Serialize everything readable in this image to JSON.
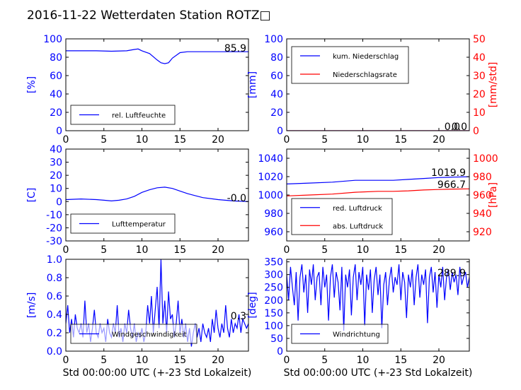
{
  "figure": {
    "title": "2016-11-22 Wetterdaten Station ROTZ□",
    "xlabel": "Std 00:00:00 UTC (+-23 Std Lokalzeit)"
  },
  "colors": {
    "blue": "#0000ff",
    "red": "#ff0000",
    "black": "#000000"
  },
  "chart_data": [
    {
      "id": "humidity",
      "type": "line",
      "xlim": [
        0,
        24
      ],
      "xticks": [
        0,
        5,
        10,
        15,
        20
      ],
      "ylim": [
        0,
        100
      ],
      "yticks": [
        0,
        20,
        40,
        60,
        80,
        100
      ],
      "ylabel": "[%]",
      "series": [
        {
          "name": "rel. Luftfeuchte",
          "color": "#0000ff",
          "x": [
            0,
            2,
            4,
            6,
            8,
            9,
            9.5,
            10,
            11,
            12,
            12.5,
            13,
            13.5,
            14,
            15,
            16,
            18,
            20,
            22,
            24
          ],
          "y": [
            87,
            87,
            87,
            86.5,
            87,
            88.5,
            89,
            87,
            84,
            77,
            74,
            73,
            74,
            79,
            85,
            86,
            86,
            86,
            86,
            86
          ]
        }
      ],
      "annotations": [
        "85.9"
      ],
      "legend_position": "lower-left"
    },
    {
      "id": "precip",
      "type": "line",
      "xlim": [
        0,
        24
      ],
      "xticks": [
        0,
        5,
        10,
        15,
        20
      ],
      "ylim": [
        0,
        100
      ],
      "yticks": [
        0,
        20,
        40,
        60,
        80,
        100
      ],
      "ylabel": "[mm]",
      "y2lim": [
        0,
        50
      ],
      "y2ticks": [
        0,
        10,
        20,
        30,
        40,
        50
      ],
      "y2label": "[mm/std]",
      "series": [
        {
          "name": "kum. Niederschlag",
          "color": "#0000ff",
          "axis": "left",
          "x": [
            0,
            24
          ],
          "y": [
            0,
            0
          ]
        },
        {
          "name": "Niederschlagsrate",
          "color": "#ff0000",
          "axis": "right",
          "x": [
            0,
            24
          ],
          "y": [
            0,
            0
          ]
        }
      ],
      "annotations": [
        "0.0",
        "0.0"
      ],
      "legend_position": "upper-left"
    },
    {
      "id": "temperature",
      "type": "line",
      "xlim": [
        0,
        24
      ],
      "xticks": [
        0,
        5,
        10,
        15,
        20
      ],
      "ylim": [
        -30,
        40
      ],
      "yticks": [
        -30,
        -20,
        -10,
        0,
        10,
        20,
        30,
        40
      ],
      "ylabel": "[C]",
      "series": [
        {
          "name": "Lufttemperatur",
          "color": "#0000ff",
          "x": [
            0,
            2,
            4,
            5,
            6,
            7,
            8,
            9,
            10,
            11,
            12,
            13,
            14,
            15,
            16,
            17,
            18,
            20,
            22,
            24
          ],
          "y": [
            1.5,
            2,
            1.5,
            1,
            0.5,
            1,
            2,
            4,
            7,
            9,
            10.5,
            11,
            10,
            8,
            6,
            4.5,
            3,
            1.5,
            0.5,
            0
          ]
        }
      ],
      "annotations": [
        "-0.0"
      ],
      "legend_position": "lower-left"
    },
    {
      "id": "pressure",
      "type": "line",
      "xlim": [
        0,
        24
      ],
      "xticks": [
        0,
        5,
        10,
        15,
        20
      ],
      "ylim": [
        950,
        1050
      ],
      "yticks": [
        960,
        980,
        1000,
        1020,
        1040
      ],
      "y2lim": [
        910,
        1010
      ],
      "y2ticks": [
        920,
        940,
        960,
        980,
        1000
      ],
      "y2label": "[hPa]",
      "series": [
        {
          "name": "red. Luftdruck",
          "color": "#0000ff",
          "axis": "left",
          "x": [
            0,
            3,
            6,
            9,
            12,
            14,
            16,
            18,
            20,
            22,
            24
          ],
          "y": [
            1012,
            1013,
            1014,
            1016,
            1016,
            1016,
            1017,
            1018,
            1019,
            1019.5,
            1019.9
          ]
        },
        {
          "name": "abs. Luftdruck",
          "color": "#ff0000",
          "axis": "right",
          "x": [
            0,
            3,
            6,
            9,
            12,
            14,
            16,
            18,
            20,
            22,
            24
          ],
          "y": [
            959,
            960,
            961,
            963,
            964,
            964,
            964.5,
            965.5,
            966,
            966.5,
            966.7
          ]
        }
      ],
      "annotations": [
        "1019.9",
        "966.7"
      ],
      "legend_position": "lower-left"
    },
    {
      "id": "windspeed",
      "type": "line",
      "xlim": [
        0,
        24
      ],
      "xticks": [
        0,
        5,
        10,
        15,
        20
      ],
      "ylim": [
        0,
        1.0
      ],
      "yticks": [
        0.0,
        0.2,
        0.4,
        0.6,
        0.8,
        1.0
      ],
      "ylabel": "[m/s]",
      "xlabel": "Std 00:00:00 UTC (+-23 Std Lokalzeit)",
      "series": [
        {
          "name": "Windgeschwindigkeit",
          "color": "#0000ff",
          "x": [
            0,
            0.25,
            0.5,
            0.75,
            1,
            1.25,
            1.5,
            1.75,
            2,
            2.25,
            2.5,
            2.75,
            3,
            3.25,
            3.5,
            3.75,
            4,
            4.25,
            4.5,
            4.75,
            5,
            5.25,
            5.5,
            5.75,
            6,
            6.25,
            6.5,
            6.75,
            7,
            7.25,
            7.5,
            7.75,
            8,
            8.25,
            8.5,
            8.75,
            9,
            9.25,
            9.5,
            9.75,
            10,
            10.25,
            10.5,
            10.75,
            11,
            11.25,
            11.5,
            11.75,
            12,
            12.25,
            12.5,
            12.75,
            13,
            13.25,
            13.5,
            13.75,
            14,
            14.25,
            14.5,
            14.75,
            15,
            15.25,
            15.5,
            15.75,
            16,
            16.25,
            16.5,
            16.75,
            17,
            17.25,
            17.5,
            17.75,
            18,
            18.25,
            18.5,
            18.75,
            19,
            19.25,
            19.5,
            19.75,
            20,
            20.25,
            20.5,
            20.75,
            21,
            21.25,
            21.5,
            21.75,
            22,
            22.25,
            22.5,
            22.75,
            23,
            23.25,
            23.5,
            23.75,
            24
          ],
          "y": [
            0.3,
            0.5,
            0.2,
            0.35,
            0.15,
            0.4,
            0.25,
            0.2,
            0.3,
            0.15,
            0.55,
            0.2,
            0.3,
            0.1,
            0.25,
            0.45,
            0.2,
            0.15,
            0.3,
            0.2,
            0.25,
            0.1,
            0.35,
            0.2,
            0.15,
            0.3,
            0.2,
            0.5,
            0.15,
            0.25,
            0.1,
            0.3,
            0.2,
            0.45,
            0.25,
            0.15,
            0.3,
            0.1,
            0.2,
            0.15,
            0.25,
            0.1,
            0.2,
            0.5,
            0.3,
            0.6,
            0.2,
            0.45,
            0.7,
            0.25,
            1.0,
            0.3,
            0.55,
            0.2,
            0.65,
            0.35,
            0.4,
            0.15,
            0.3,
            0.55,
            0.2,
            0.35,
            0.15,
            0.3,
            0.1,
            0.25,
            0.05,
            0.2,
            0.3,
            0.15,
            0.25,
            0.1,
            0.3,
            0.2,
            0.15,
            0.25,
            0.1,
            0.35,
            0.2,
            0.45,
            0.25,
            0.15,
            0.3,
            0.2,
            0.5,
            0.25,
            0.15,
            0.35,
            0.2,
            0.3,
            0.25,
            0.4,
            0.2,
            0.35,
            0.3,
            0.25,
            0.3
          ]
        }
      ],
      "annotations": [
        "0.3"
      ],
      "legend_position": "lower-left"
    },
    {
      "id": "winddir",
      "type": "line",
      "xlim": [
        0,
        24
      ],
      "xticks": [
        0,
        5,
        10,
        15,
        20
      ],
      "ylim": [
        0,
        360
      ],
      "yticks": [
        0,
        50,
        100,
        150,
        200,
        250,
        300,
        350
      ],
      "ylabel": "[deg]",
      "xlabel": "Std 00:00:00 UTC (+-23 Std Lokalzeit)",
      "series": [
        {
          "name": "Windrichtung",
          "color": "#0000ff",
          "x": [
            0,
            0.25,
            0.5,
            0.75,
            1,
            1.25,
            1.5,
            1.75,
            2,
            2.25,
            2.5,
            2.75,
            3,
            3.25,
            3.5,
            3.75,
            4,
            4.25,
            4.5,
            4.75,
            5,
            5.25,
            5.5,
            5.75,
            6,
            6.25,
            6.5,
            6.75,
            7,
            7.25,
            7.5,
            7.75,
            8,
            8.25,
            8.5,
            8.75,
            9,
            9.25,
            9.5,
            9.75,
            10,
            10.25,
            10.5,
            10.75,
            11,
            11.25,
            11.5,
            11.75,
            12,
            12.25,
            12.5,
            12.75,
            13,
            13.25,
            13.5,
            13.75,
            14,
            14.25,
            14.5,
            14.75,
            15,
            15.25,
            15.5,
            15.75,
            16,
            16.25,
            16.5,
            16.75,
            17,
            17.25,
            17.5,
            17.75,
            18,
            18.25,
            18.5,
            18.75,
            19,
            19.25,
            19.5,
            19.75,
            20,
            20.25,
            20.5,
            20.75,
            21,
            21.25,
            21.5,
            21.75,
            22,
            22.25,
            22.5,
            22.75,
            23,
            23.25,
            23.5,
            23.75,
            24
          ],
          "y": [
            300,
            200,
            330,
            250,
            180,
            310,
            120,
            290,
            340,
            230,
            300,
            150,
            320,
            260,
            340,
            200,
            290,
            310,
            180,
            330,
            250,
            300,
            120,
            290,
            340,
            210,
            310,
            270,
            160,
            330,
            80,
            300,
            250,
            320,
            140,
            290,
            340,
            200,
            310,
            260,
            330,
            100,
            300,
            240,
            320,
            150,
            280,
            330,
            220,
            300,
            90,
            260,
            310,
            180,
            280,
            330,
            230,
            290,
            260,
            340,
            200,
            310,
            270,
            130,
            300,
            250,
            320,
            180,
            290,
            340,
            210,
            300,
            260,
            320,
            110,
            290,
            330,
            230,
            310,
            170,
            300,
            250,
            330,
            200,
            290,
            320,
            240,
            310,
            270,
            300,
            220,
            330,
            260,
            290,
            310,
            250,
            290
          ]
        }
      ],
      "annotations": [
        "289.9"
      ],
      "legend_position": "lower-left"
    }
  ]
}
